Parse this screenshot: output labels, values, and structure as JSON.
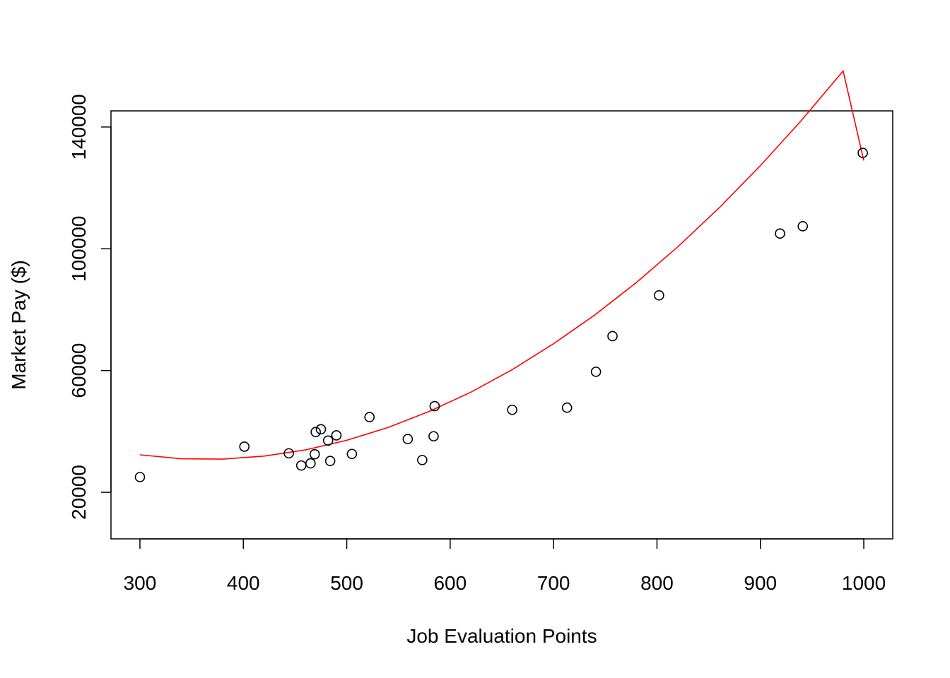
{
  "chart_data": {
    "type": "scatter",
    "title": "",
    "xlabel": "Job Evaluation Points",
    "ylabel": "Market Pay ($)",
    "xlim": [
      272,
      1028
    ],
    "ylim": [
      4700,
      145300
    ],
    "x_ticks": [
      300,
      400,
      500,
      600,
      700,
      800,
      900,
      1000
    ],
    "y_ticks": [
      20000,
      60000,
      100000,
      140000
    ],
    "grid": false,
    "legend": "none",
    "point_color": "#000000",
    "curve_color": "#ff0000",
    "series": [
      {
        "type": "scatter",
        "x": [
          300,
          401,
          444,
          456,
          465,
          469,
          470,
          475,
          482,
          484,
          490,
          505,
          522,
          559,
          573,
          584,
          585,
          660,
          713,
          741,
          757,
          802,
          919,
          941,
          999
        ],
        "y": [
          25000,
          35000,
          32800,
          28800,
          29500,
          32500,
          39800,
          40700,
          37000,
          30300,
          38700,
          32600,
          44700,
          37500,
          30600,
          38400,
          48300,
          47100,
          47800,
          59600,
          71300,
          84700,
          105000,
          107400,
          131500
        ]
      },
      {
        "type": "line",
        "x": [
          300,
          340,
          380,
          420,
          460,
          500,
          540,
          580,
          620,
          660,
          700,
          740,
          780,
          820,
          860,
          900,
          940,
          980,
          1000
        ],
        "y": [
          32300,
          31000,
          30900,
          31900,
          33900,
          37100,
          41300,
          46600,
          52900,
          60300,
          68800,
          78300,
          88900,
          100600,
          113400,
          127300,
          142300,
          158400,
          129000
        ]
      }
    ]
  }
}
